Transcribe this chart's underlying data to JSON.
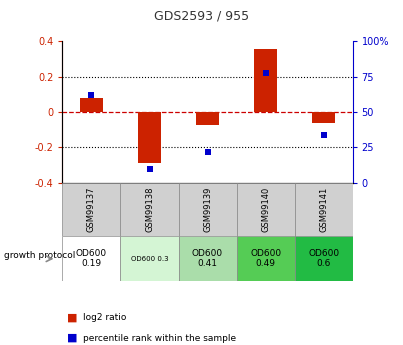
{
  "title": "GDS2593 / 955",
  "samples": [
    "GSM99137",
    "GSM99138",
    "GSM99139",
    "GSM99140",
    "GSM99141"
  ],
  "log2_ratio": [
    0.08,
    -0.29,
    -0.07,
    0.355,
    -0.06
  ],
  "percentile_rank": [
    62,
    10,
    22,
    78,
    34
  ],
  "ylim_left": [
    -0.4,
    0.4
  ],
  "ylim_right": [
    0,
    100
  ],
  "bar_color": "#cc2200",
  "dot_color": "#0000cc",
  "dotted_line_color": "#000000",
  "dashed_zero_color": "#cc0000",
  "growth_protocol_labels": [
    "OD600\n0.19",
    "OD600 0.3",
    "OD600\n0.41",
    "OD600\n0.49",
    "OD600\n0.6"
  ],
  "growth_protocol_colors": [
    "#ffffff",
    "#d4f5d4",
    "#aaddaa",
    "#55cc55",
    "#22bb44"
  ],
  "left_yticks": [
    -0.4,
    -0.2,
    0.0,
    0.2,
    0.4
  ],
  "right_yticks": [
    0,
    25,
    50,
    75,
    100
  ],
  "left_yticklabels": [
    "-0.4",
    "-0.2",
    "0",
    "0.2",
    "0.4"
  ],
  "right_yticklabels": [
    "0",
    "25",
    "50",
    "75",
    "100%"
  ],
  "title_color": "#333333",
  "left_tick_color": "#cc2200",
  "right_tick_color": "#0000cc",
  "label_row_color": "#d0d0d0",
  "bar_width": 0.4
}
